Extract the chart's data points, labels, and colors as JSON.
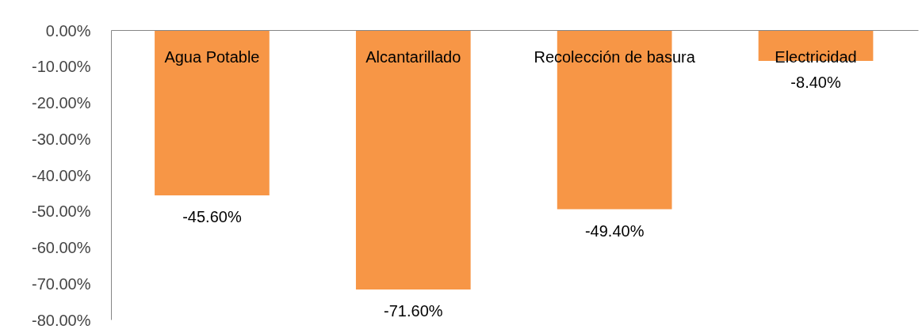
{
  "chart_data": {
    "type": "bar",
    "categories": [
      "Agua Potable",
      "Alcantarillado",
      "Recolección de basura",
      "Electricidad"
    ],
    "values": [
      -45.6,
      -71.6,
      -49.4,
      -8.4
    ],
    "value_labels": [
      "-45.60%",
      "-71.60%",
      "-49.40%",
      "-8.40%"
    ],
    "color": "#f79646",
    "ylim": [
      -80,
      0
    ],
    "yticks": [
      {
        "value": 0,
        "label": "0.00%"
      },
      {
        "value": -10,
        "label": "-10.00%"
      },
      {
        "value": -20,
        "label": "-20.00%"
      },
      {
        "value": -30,
        "label": "-30.00%"
      },
      {
        "value": -40,
        "label": "-40.00%"
      },
      {
        "value": -50,
        "label": "-50.00%"
      },
      {
        "value": -60,
        "label": "-60.00%"
      },
      {
        "value": -70,
        "label": "-70.00%"
      },
      {
        "value": -80,
        "label": "-80.00%"
      }
    ],
    "grid": false
  }
}
